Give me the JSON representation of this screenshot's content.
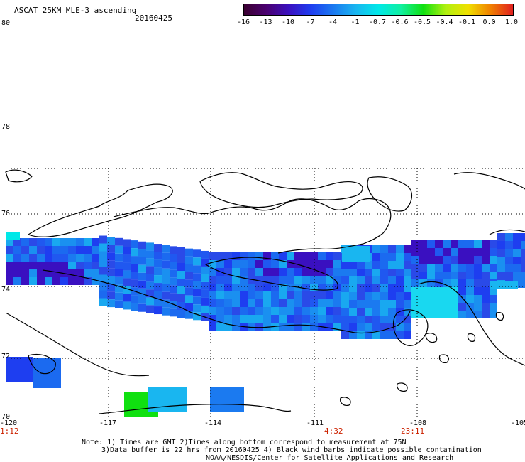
{
  "header": {
    "title": "ASCAT 25KM MLE-3 ascending",
    "date": "20160425"
  },
  "colorbar": {
    "ticks": [
      "-16",
      "-13",
      "-10",
      "-7",
      "-4",
      "-1",
      "-0.7",
      "-0.6",
      "-0.5",
      "-0.4",
      "-0.1",
      "0.0",
      "1.0"
    ],
    "colors": [
      "#3a0030",
      "#4a0070",
      "#3a10c0",
      "#1e3ef0",
      "#1b7af0",
      "#19b6f0",
      "#00e8e8",
      "#10f0a0",
      "#10e010",
      "#b0f010",
      "#f0e000",
      "#f08000",
      "#e02020"
    ]
  },
  "axes": {
    "lat_labels": [
      "80",
      "78",
      "76",
      "74",
      "72",
      "70"
    ],
    "lon_labels": [
      "-120",
      "-117",
      "-114",
      "-111",
      "-108",
      "-105"
    ]
  },
  "times": {
    "left": "1:12",
    "mid": "4:32",
    "right": "23:11"
  },
  "notes": {
    "line1": "Note: 1) Times are GMT 2)Times along bottom correspond to measurement at 75N",
    "line2": "3)Data buffer is 22 hrs from 20160425 4) Black wind barbs indicate possible contamination",
    "line3": "NOAA/NESDIS/Center for Satellite Applications and Research"
  }
}
